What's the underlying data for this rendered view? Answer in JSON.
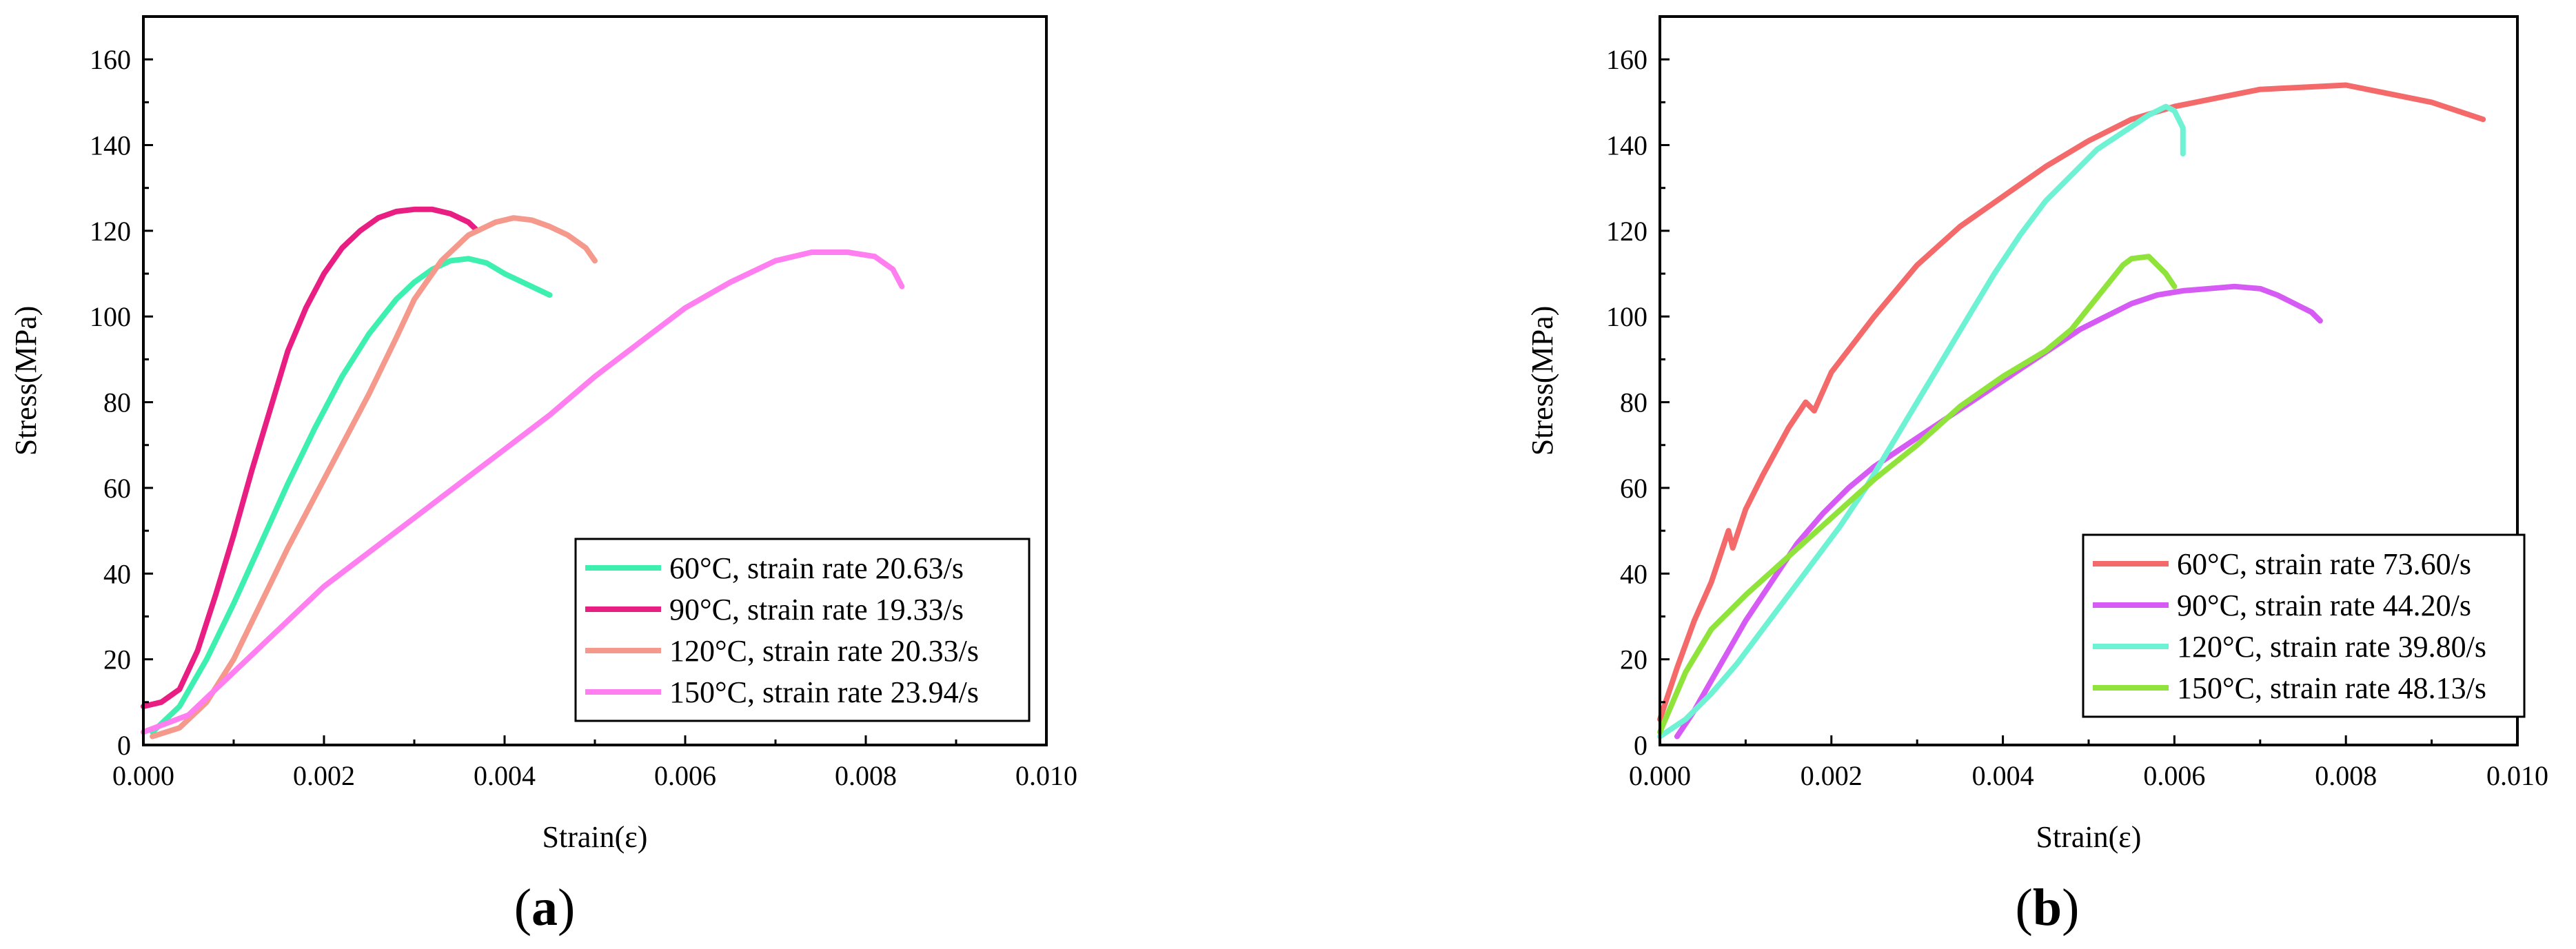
{
  "chart_data": [
    {
      "type": "line",
      "panel_label": "a",
      "panel_label_open": "(",
      "panel_label_close": ")",
      "xlabel": "Strain(ε)",
      "ylabel": "Stress(MPa)",
      "xlim": [
        0,
        0.01
      ],
      "ylim": [
        0,
        170
      ],
      "xticks": [
        0,
        0.002,
        0.004,
        0.006,
        0.008,
        0.01
      ],
      "xtick_labels": [
        "0.000",
        "0.002",
        "0.004",
        "0.006",
        "0.008",
        "0.010"
      ],
      "yticks": [
        0,
        20,
        40,
        60,
        80,
        100,
        120,
        140,
        160
      ],
      "ytick_labels": [
        "0",
        "20",
        "40",
        "60",
        "80",
        "100",
        "120",
        "140",
        "160"
      ],
      "grid": false,
      "legend_position": "bottom-right",
      "series": [
        {
          "name": "60°C, strain rate 20.63/s",
          "color": "#3ef0b0",
          "x": [
            0.0001,
            0.0004,
            0.0007,
            0.001,
            0.0013,
            0.0016,
            0.0019,
            0.0022,
            0.0025,
            0.0028,
            0.003,
            0.0032,
            0.0034,
            0.0036,
            0.0038,
            0.004,
            0.0042,
            0.0045
          ],
          "y": [
            3,
            9,
            20,
            33,
            47,
            61,
            74,
            86,
            96,
            104,
            108,
            111,
            113,
            113.5,
            112.5,
            110,
            108,
            105
          ]
        },
        {
          "name": "90°C, strain rate 19.33/s",
          "color": "#e91e82",
          "x": [
            0,
            0.0002,
            0.0004,
            0.0006,
            0.0008,
            0.001,
            0.0012,
            0.0014,
            0.0016,
            0.0018,
            0.002,
            0.0022,
            0.0024,
            0.0026,
            0.0028,
            0.003,
            0.0032,
            0.0034,
            0.0036,
            0.0037
          ],
          "y": [
            9,
            10,
            13,
            22,
            35,
            49,
            64,
            78,
            92,
            102,
            110,
            116,
            120,
            123,
            124.5,
            125,
            125,
            124,
            122,
            120
          ]
        },
        {
          "name": "120°C, strain rate 20.33/s",
          "color": "#f4998c",
          "x": [
            0.0001,
            0.0004,
            0.0007,
            0.001,
            0.0013,
            0.0016,
            0.0019,
            0.0022,
            0.0025,
            0.0028,
            0.003,
            0.0033,
            0.0036,
            0.0039,
            0.0041,
            0.0043,
            0.0045,
            0.0047,
            0.0049,
            0.005
          ],
          "y": [
            2,
            4,
            10,
            20,
            33,
            46,
            58,
            70,
            82,
            95,
            104,
            113,
            119,
            122,
            123,
            122.5,
            121,
            119,
            116,
            113
          ]
        },
        {
          "name": "150°C, strain rate 23.94/s",
          "color": "#ff7ff0",
          "x": [
            0,
            0.0005,
            0.001,
            0.0015,
            0.002,
            0.0025,
            0.003,
            0.0035,
            0.004,
            0.0045,
            0.005,
            0.0055,
            0.006,
            0.0065,
            0.007,
            0.0074,
            0.0078,
            0.0081,
            0.0083,
            0.0084
          ],
          "y": [
            3,
            7,
            17,
            27,
            37,
            45,
            53,
            61,
            69,
            77,
            86,
            94,
            102,
            108,
            113,
            115,
            115,
            114,
            111,
            107
          ]
        }
      ]
    },
    {
      "type": "line",
      "panel_label": "b",
      "panel_label_open": "(",
      "panel_label_close": ")",
      "xlabel": "Strain(ε)",
      "ylabel": "Stress(MPa)",
      "xlim": [
        0,
        0.01
      ],
      "ylim": [
        0,
        170
      ],
      "xticks": [
        0,
        0.002,
        0.004,
        0.006,
        0.008,
        0.01
      ],
      "xtick_labels": [
        "0.000",
        "0.002",
        "0.004",
        "0.006",
        "0.008",
        "0.010"
      ],
      "yticks": [
        0,
        20,
        40,
        60,
        80,
        100,
        120,
        140,
        160
      ],
      "ytick_labels": [
        "0",
        "20",
        "40",
        "60",
        "80",
        "100",
        "120",
        "140",
        "160"
      ],
      "grid": false,
      "legend_position": "bottom-right",
      "series": [
        {
          "name": "60°C, strain rate 73.60/s",
          "color": "#f46a6a",
          "x": [
            0,
            0.0002,
            0.0004,
            0.0006,
            0.0008,
            0.00085,
            0.001,
            0.0012,
            0.0015,
            0.0017,
            0.0018,
            0.002,
            0.0025,
            0.003,
            0.0035,
            0.004,
            0.0045,
            0.005,
            0.0055,
            0.006,
            0.0065,
            0.007,
            0.0075,
            0.008,
            0.0085,
            0.009,
            0.0093,
            0.0096
          ],
          "y": [
            6,
            18,
            29,
            38,
            50,
            46,
            55,
            63,
            74,
            80,
            78,
            87,
            100,
            112,
            121,
            128,
            135,
            141,
            146,
            149,
            151,
            153,
            153.5,
            154,
            152,
            150,
            148,
            146
          ]
        },
        {
          "name": "90°C, strain rate 44.20/s",
          "color": "#d65bf5",
          "x": [
            0.0002,
            0.0004,
            0.0006,
            0.0008,
            0.001,
            0.0013,
            0.0016,
            0.0019,
            0.0022,
            0.0025,
            0.0028,
            0.0031,
            0.0034,
            0.0037,
            0.004,
            0.0043,
            0.0046,
            0.0049,
            0.0052,
            0.0055,
            0.0058,
            0.0061,
            0.0064,
            0.0067,
            0.007,
            0.0072,
            0.0074,
            0.0076,
            0.0077
          ],
          "y": [
            2,
            8,
            15,
            22,
            29,
            38,
            47,
            54,
            60,
            65,
            69,
            73,
            77,
            81,
            85,
            89,
            93,
            97,
            100,
            103,
            105,
            106,
            106.5,
            107,
            106.5,
            105,
            103,
            101,
            99
          ]
        },
        {
          "name": "120°C, strain rate 39.80/s",
          "color": "#6df2d4",
          "x": [
            0,
            0.0003,
            0.0006,
            0.0009,
            0.0012,
            0.0015,
            0.0018,
            0.0021,
            0.0024,
            0.0027,
            0.003,
            0.0033,
            0.0036,
            0.0039,
            0.0042,
            0.0045,
            0.0048,
            0.0051,
            0.0054,
            0.0057,
            0.0059,
            0.006,
            0.0061,
            0.0061
          ],
          "y": [
            2,
            6,
            12,
            19,
            27,
            35,
            43,
            51,
            60,
            70,
            80,
            90,
            100,
            110,
            119,
            127,
            133,
            139,
            143,
            147,
            149,
            148,
            144,
            138
          ]
        },
        {
          "name": "150°C, strain rate 48.13/s",
          "color": "#8fe33a",
          "x": [
            0,
            0.0003,
            0.0006,
            0.001,
            0.0015,
            0.002,
            0.0025,
            0.003,
            0.0035,
            0.004,
            0.0045,
            0.0048,
            0.005,
            0.0052,
            0.0054,
            0.0055,
            0.0057,
            0.0058,
            0.0059,
            0.006
          ],
          "y": [
            3,
            17,
            27,
            35,
            44,
            53,
            62,
            70,
            79,
            86,
            92,
            97,
            102,
            107,
            112,
            113.5,
            114,
            112,
            110,
            107
          ]
        }
      ]
    }
  ]
}
